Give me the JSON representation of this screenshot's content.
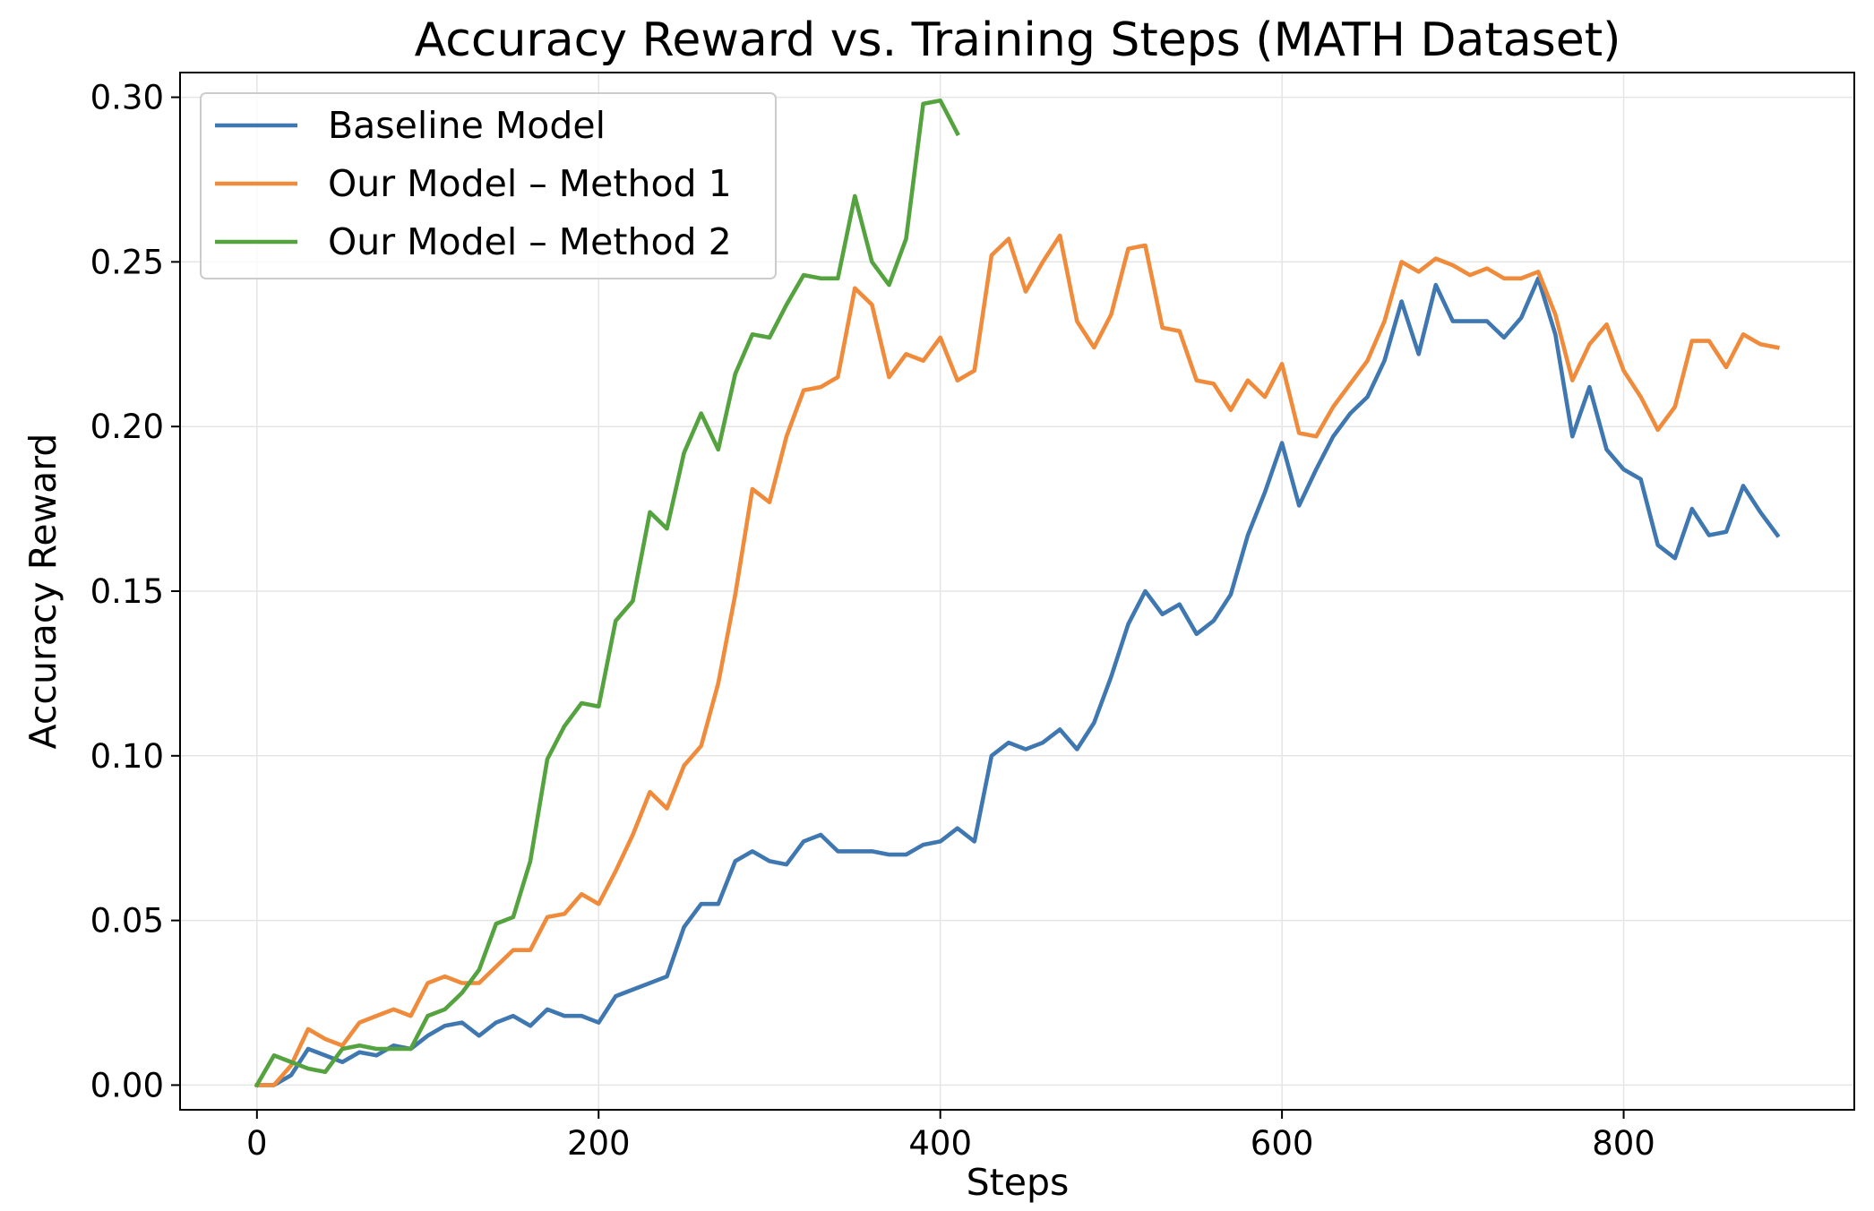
{
  "chart_data": {
    "type": "line",
    "title": "Accuracy Reward vs. Training Steps (MATH Dataset)",
    "xlabel": "Steps",
    "ylabel": "Accuracy Reward",
    "xlim": [
      -45,
      935
    ],
    "ylim": [
      -0.0075,
      0.3075
    ],
    "xticks": [
      0,
      200,
      400,
      600,
      800
    ],
    "xtick_labels": [
      "0",
      "200",
      "400",
      "600",
      "800"
    ],
    "yticks": [
      0.0,
      0.05,
      0.1,
      0.15,
      0.2,
      0.25,
      0.3
    ],
    "ytick_labels": [
      "0.00",
      "0.05",
      "0.10",
      "0.15",
      "0.20",
      "0.25",
      "0.30"
    ],
    "grid": true,
    "legend_position": "upper-left",
    "series": [
      {
        "name": "Baseline Model",
        "color": "#3f77b1",
        "x": [
          0,
          10,
          20,
          30,
          40,
          50,
          60,
          70,
          80,
          90,
          100,
          110,
          120,
          130,
          140,
          150,
          160,
          170,
          180,
          190,
          200,
          210,
          220,
          230,
          240,
          250,
          260,
          270,
          280,
          290,
          300,
          310,
          320,
          330,
          340,
          350,
          360,
          370,
          380,
          390,
          400,
          410,
          420,
          430,
          440,
          450,
          460,
          470,
          480,
          490,
          500,
          510,
          520,
          530,
          540,
          550,
          560,
          570,
          580,
          590,
          600,
          610,
          620,
          630,
          640,
          650,
          660,
          670,
          680,
          690,
          700,
          710,
          720,
          730,
          740,
          750,
          760,
          770,
          780,
          790,
          800,
          810,
          820,
          830,
          840,
          850,
          860,
          870,
          880,
          890
        ],
        "y": [
          0.0,
          0.0,
          0.003,
          0.011,
          0.009,
          0.007,
          0.01,
          0.009,
          0.012,
          0.011,
          0.015,
          0.018,
          0.019,
          0.015,
          0.019,
          0.021,
          0.018,
          0.023,
          0.021,
          0.021,
          0.019,
          0.027,
          0.029,
          0.031,
          0.033,
          0.048,
          0.055,
          0.055,
          0.068,
          0.071,
          0.068,
          0.067,
          0.074,
          0.076,
          0.071,
          0.071,
          0.071,
          0.07,
          0.07,
          0.073,
          0.074,
          0.078,
          0.074,
          0.1,
          0.104,
          0.102,
          0.104,
          0.108,
          0.102,
          0.11,
          0.124,
          0.14,
          0.15,
          0.143,
          0.146,
          0.137,
          0.141,
          0.149,
          0.167,
          0.18,
          0.195,
          0.176,
          0.187,
          0.197,
          0.204,
          0.209,
          0.22,
          0.238,
          0.222,
          0.243,
          0.232,
          0.232,
          0.232,
          0.227,
          0.233,
          0.245,
          0.228,
          0.197,
          0.212,
          0.193,
          0.187,
          0.184,
          0.164,
          0.16,
          0.175,
          0.167,
          0.168,
          0.182,
          0.174,
          0.167
        ]
      },
      {
        "name": "Our Model – Method 1",
        "color": "#ef8b3a",
        "x": [
          0,
          10,
          20,
          30,
          40,
          50,
          60,
          70,
          80,
          90,
          100,
          110,
          120,
          130,
          140,
          150,
          160,
          170,
          180,
          190,
          200,
          210,
          220,
          230,
          240,
          250,
          260,
          270,
          280,
          290,
          300,
          310,
          320,
          330,
          340,
          350,
          360,
          370,
          380,
          390,
          400,
          410,
          420,
          430,
          440,
          450,
          460,
          470,
          480,
          490,
          500,
          510,
          520,
          530,
          540,
          550,
          560,
          570,
          580,
          590,
          600,
          610,
          620,
          630,
          640,
          650,
          660,
          670,
          680,
          690,
          700,
          710,
          720,
          730,
          740,
          750,
          760,
          770,
          780,
          790,
          800,
          810,
          820,
          830,
          840,
          850,
          860,
          870,
          880,
          890
        ],
        "y": [
          0.0,
          0.0,
          0.006,
          0.017,
          0.014,
          0.012,
          0.019,
          0.021,
          0.023,
          0.021,
          0.031,
          0.033,
          0.031,
          0.031,
          0.036,
          0.041,
          0.041,
          0.051,
          0.052,
          0.058,
          0.055,
          0.065,
          0.076,
          0.089,
          0.084,
          0.097,
          0.103,
          0.122,
          0.149,
          0.181,
          0.177,
          0.197,
          0.211,
          0.212,
          0.215,
          0.242,
          0.237,
          0.215,
          0.222,
          0.22,
          0.227,
          0.214,
          0.217,
          0.252,
          0.257,
          0.241,
          0.25,
          0.258,
          0.232,
          0.224,
          0.234,
          0.254,
          0.255,
          0.23,
          0.229,
          0.214,
          0.213,
          0.205,
          0.214,
          0.209,
          0.219,
          0.198,
          0.197,
          0.206,
          0.213,
          0.22,
          0.232,
          0.25,
          0.247,
          0.251,
          0.249,
          0.246,
          0.248,
          0.245,
          0.245,
          0.247,
          0.234,
          0.214,
          0.225,
          0.231,
          0.217,
          0.209,
          0.199,
          0.206,
          0.226,
          0.226,
          0.218,
          0.228,
          0.225,
          0.224
        ]
      },
      {
        "name": "Our Model – Method 2",
        "color": "#54a33f",
        "x": [
          0,
          10,
          20,
          30,
          40,
          50,
          60,
          70,
          80,
          90,
          100,
          110,
          120,
          130,
          140,
          150,
          160,
          170,
          180,
          190,
          200,
          210,
          220,
          230,
          240,
          250,
          260,
          270,
          280,
          290,
          300,
          310,
          320,
          330,
          340,
          350,
          360,
          370,
          380,
          390,
          400,
          410
        ],
        "y": [
          0.0,
          0.009,
          0.007,
          0.005,
          0.004,
          0.011,
          0.012,
          0.011,
          0.011,
          0.011,
          0.021,
          0.023,
          0.028,
          0.035,
          0.049,
          0.051,
          0.068,
          0.099,
          0.109,
          0.116,
          0.115,
          0.141,
          0.147,
          0.174,
          0.169,
          0.192,
          0.204,
          0.193,
          0.216,
          0.228,
          0.227,
          0.237,
          0.246,
          0.245,
          0.245,
          0.27,
          0.25,
          0.243,
          0.257,
          0.298,
          0.299,
          0.289
        ]
      }
    ]
  }
}
